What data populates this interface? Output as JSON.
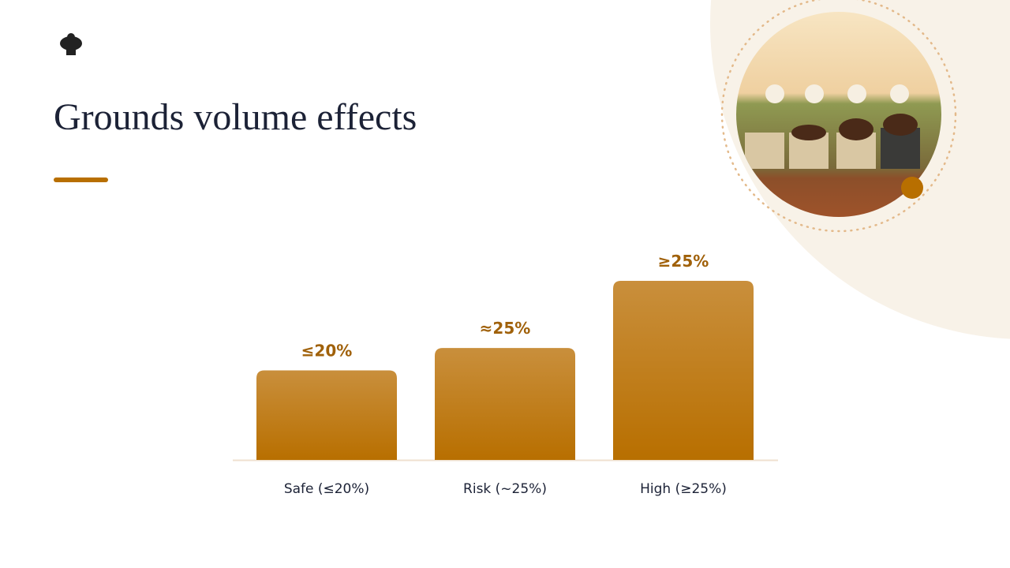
{
  "chart_data": {
    "type": "bar",
    "title": "Grounds volume effects",
    "categories": [
      "Safe (≤20%)",
      "Risk (~25%)",
      "High (≥25%)"
    ],
    "values": [
      20,
      25,
      40
    ],
    "value_labels": [
      "≤20%",
      "≈25%",
      "≥25%"
    ],
    "color": "#b86f00"
  }
}
